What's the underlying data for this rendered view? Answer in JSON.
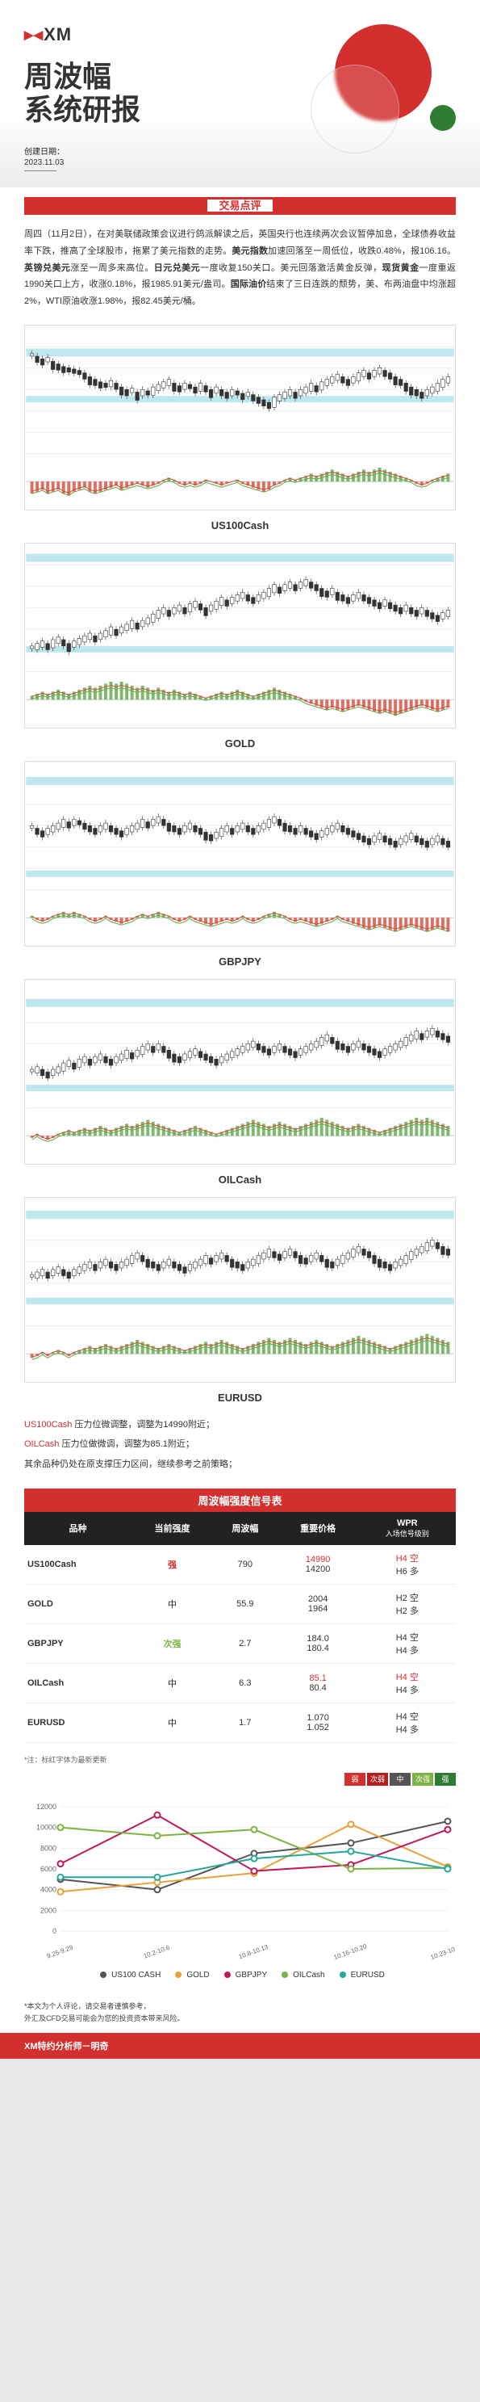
{
  "brand": "XM",
  "title_line1": "周波幅",
  "title_line2": "系统研报",
  "date_label": "创建日期：",
  "date_value": "2023.11.03",
  "section_commentary": "交易点评",
  "commentary_html": "周四（11月2日），在对美联储政策会议进行鸽派解读之后，英国央行也连续两次会议暂停加息，全球债券收益率下跌，推高了全球股市，拖累了美元指数的走势。<b>美元指数</b>加速回落至一周低位，收跌0.48%，报106.16。<b>英镑兑美元</b>涨至一周多来高位。<b>日元兑美元</b>一度收复150关口。美元回落激活黄金反弹，<b>现货黄金</b>一度重返1990关口上方，收涨0.18%，报1985.91美元/盎司。<b>国际油价</b>结束了三日连跌的颓势，美、布两油盘中均涨超2%，WTI原油收涨1.98%，报82.45美元/桶。",
  "charts": [
    {
      "label": "US100Cash",
      "support1": 0.55,
      "support2": 0.65,
      "resist": 0.18,
      "trend": "down-up",
      "bars": [
        78,
        76,
        74,
        75,
        72,
        70,
        68,
        67,
        66,
        65,
        63,
        60,
        58,
        56,
        55,
        57,
        55,
        52,
        50,
        51,
        48,
        50,
        49,
        52,
        54,
        56,
        58,
        55,
        53,
        55,
        54,
        52,
        55,
        53,
        50,
        52,
        50,
        48,
        50,
        49,
        47,
        48,
        46,
        44,
        42,
        40,
        44,
        46,
        48,
        50,
        48,
        50,
        52,
        55,
        53,
        56,
        58,
        60,
        62,
        60,
        58,
        60,
        63,
        65,
        63,
        65,
        67,
        65,
        63,
        60,
        58,
        55,
        52,
        50,
        48,
        50,
        52,
        55,
        58,
        60
      ],
      "osc": [
        -6,
        -5,
        -4,
        -6,
        -5,
        -4,
        -6,
        -7,
        -5,
        -4,
        -3,
        -5,
        -6,
        -5,
        -4,
        -3,
        -2,
        -4,
        -3,
        -2,
        -1,
        -2,
        -3,
        -2,
        -1,
        1,
        2,
        1,
        -1,
        -2,
        -1,
        -2,
        -1,
        1,
        0,
        -1,
        -2,
        -1,
        0,
        1,
        -1,
        -2,
        -3,
        -4,
        -5,
        -4,
        -2,
        -1,
        1,
        2,
        1,
        2,
        3,
        4,
        3,
        4,
        5,
        6,
        5,
        4,
        3,
        4,
        5,
        6,
        5,
        6,
        7,
        6,
        5,
        4,
        3,
        2,
        1,
        -1,
        -2,
        -1,
        1,
        2,
        3,
        4
      ]
    },
    {
      "label": "GOLD",
      "support1": 0.8,
      "support2": 0.88,
      "resist": 0.08,
      "trend": "up-down",
      "bars": [
        20,
        22,
        24,
        22,
        25,
        27,
        25,
        22,
        24,
        26,
        28,
        30,
        28,
        30,
        32,
        35,
        33,
        35,
        37,
        40,
        38,
        40,
        42,
        45,
        48,
        50,
        48,
        50,
        52,
        50,
        53,
        55,
        53,
        50,
        52,
        55,
        58,
        56,
        58,
        60,
        62,
        60,
        58,
        60,
        62,
        65,
        68,
        66,
        68,
        70,
        68,
        70,
        72,
        70,
        68,
        65,
        63,
        65,
        62,
        60,
        58,
        60,
        62,
        60,
        58,
        56,
        54,
        56,
        54,
        52,
        50,
        52,
        50,
        48,
        50,
        48,
        46,
        44,
        46,
        48
      ],
      "osc": [
        2,
        3,
        4,
        3,
        4,
        5,
        4,
        3,
        4,
        5,
        6,
        7,
        6,
        7,
        8,
        9,
        8,
        9,
        8,
        7,
        6,
        7,
        6,
        5,
        6,
        5,
        4,
        5,
        4,
        3,
        4,
        3,
        2,
        1,
        2,
        3,
        4,
        3,
        4,
        5,
        4,
        3,
        2,
        3,
        4,
        5,
        6,
        5,
        4,
        3,
        2,
        1,
        -1,
        -2,
        -3,
        -4,
        -5,
        -4,
        -5,
        -6,
        -5,
        -4,
        -3,
        -4,
        -5,
        -6,
        -7,
        -6,
        -7,
        -8,
        -7,
        -6,
        -5,
        -4,
        -3,
        -4,
        -5,
        -6,
        -5,
        -4
      ]
    },
    {
      "label": "GBPJPY",
      "support1": 0.85,
      "support2": 0.92,
      "resist": 0.12,
      "trend": "up-down",
      "bars": [
        50,
        48,
        46,
        48,
        50,
        52,
        55,
        53,
        55,
        54,
        52,
        50,
        48,
        50,
        52,
        50,
        48,
        46,
        48,
        50,
        52,
        55,
        53,
        55,
        57,
        55,
        52,
        50,
        48,
        50,
        52,
        50,
        48,
        45,
        43,
        45,
        48,
        50,
        48,
        50,
        52,
        50,
        48,
        50,
        52,
        55,
        57,
        55,
        52,
        50,
        48,
        50,
        48,
        46,
        44,
        46,
        48,
        50,
        52,
        50,
        48,
        46,
        44,
        42,
        40,
        42,
        44,
        42,
        40,
        38,
        40,
        42,
        44,
        42,
        40,
        38,
        40,
        42,
        40,
        38
      ],
      "osc": [
        1,
        -1,
        -2,
        -1,
        1,
        2,
        3,
        2,
        3,
        2,
        1,
        -1,
        -2,
        -1,
        1,
        -1,
        -2,
        -3,
        -2,
        -1,
        1,
        2,
        1,
        2,
        3,
        2,
        1,
        -1,
        -2,
        -1,
        1,
        -1,
        -2,
        -3,
        -4,
        -3,
        -2,
        -1,
        -2,
        -1,
        1,
        -1,
        -2,
        -1,
        1,
        2,
        3,
        2,
        1,
        -1,
        -2,
        -1,
        -2,
        -3,
        -4,
        -3,
        -2,
        -1,
        1,
        -1,
        -2,
        -3,
        -4,
        -5,
        -6,
        -5,
        -4,
        -5,
        -6,
        -7,
        -6,
        -5,
        -4,
        -5,
        -6,
        -7,
        -6,
        -5,
        -6,
        -7
      ]
    },
    {
      "label": "OILCash",
      "support1": 0.82,
      "support2": 0.9,
      "resist": 0.15,
      "trend": "down-up",
      "bars": [
        30,
        32,
        30,
        28,
        30,
        32,
        35,
        37,
        35,
        38,
        40,
        38,
        40,
        42,
        40,
        38,
        40,
        42,
        45,
        43,
        45,
        48,
        50,
        48,
        50,
        48,
        45,
        42,
        40,
        42,
        44,
        46,
        44,
        42,
        40,
        38,
        40,
        42,
        44,
        46,
        48,
        50,
        52,
        50,
        48,
        46,
        48,
        50,
        48,
        46,
        44,
        46,
        48,
        50,
        52,
        55,
        57,
        55,
        52,
        50,
        48,
        50,
        52,
        50,
        48,
        46,
        44,
        46,
        48,
        50,
        52,
        55,
        57,
        60,
        58,
        60,
        62,
        60,
        58,
        56
      ],
      "osc": [
        -1,
        1,
        -1,
        -2,
        -1,
        1,
        2,
        3,
        2,
        3,
        4,
        3,
        4,
        5,
        4,
        3,
        4,
        5,
        6,
        5,
        6,
        7,
        8,
        7,
        6,
        5,
        4,
        3,
        2,
        3,
        4,
        5,
        4,
        3,
        2,
        1,
        2,
        3,
        4,
        5,
        6,
        7,
        8,
        7,
        6,
        5,
        6,
        7,
        6,
        5,
        4,
        5,
        6,
        7,
        8,
        9,
        8,
        7,
        6,
        5,
        4,
        5,
        6,
        5,
        4,
        3,
        2,
        3,
        4,
        5,
        6,
        7,
        8,
        9,
        8,
        9,
        8,
        7,
        6,
        5
      ]
    },
    {
      "label": "EURUSD",
      "support1": 0.78,
      "support2": 0.88,
      "resist": 0.1,
      "trend": "up-down",
      "bars": [
        40,
        42,
        44,
        42,
        44,
        46,
        44,
        42,
        44,
        46,
        48,
        50,
        48,
        50,
        52,
        50,
        48,
        50,
        52,
        55,
        57,
        55,
        52,
        50,
        48,
        50,
        52,
        50,
        48,
        46,
        48,
        50,
        52,
        55,
        53,
        55,
        57,
        55,
        52,
        50,
        48,
        50,
        52,
        55,
        57,
        60,
        58,
        56,
        58,
        60,
        58,
        55,
        53,
        55,
        57,
        55,
        52,
        50,
        52,
        55,
        57,
        60,
        62,
        60,
        58,
        55,
        52,
        50,
        48,
        50,
        52,
        55,
        58,
        60,
        62,
        65,
        67,
        65,
        62,
        60
      ],
      "osc": [
        -2,
        -1,
        1,
        -1,
        1,
        2,
        1,
        -1,
        1,
        2,
        3,
        4,
        3,
        4,
        5,
        4,
        3,
        4,
        5,
        6,
        7,
        6,
        5,
        4,
        3,
        4,
        5,
        4,
        3,
        2,
        3,
        4,
        5,
        6,
        5,
        6,
        7,
        6,
        5,
        4,
        3,
        4,
        5,
        6,
        7,
        8,
        7,
        6,
        7,
        8,
        7,
        6,
        5,
        6,
        7,
        6,
        5,
        4,
        5,
        6,
        7,
        8,
        9,
        8,
        7,
        6,
        5,
        4,
        3,
        4,
        5,
        6,
        7,
        8,
        9,
        10,
        9,
        8,
        7,
        6
      ]
    }
  ],
  "notes": [
    {
      "sym": "US100Cash",
      "txt": " 压力位微调整，调整为14990附近；",
      "hl": true
    },
    {
      "sym": "OILCash",
      "txt": " 压力位做微调，调整为85.1附近；",
      "hl": true
    },
    {
      "sym": "",
      "txt": "其余品种仍处在原支撑压力区间，继续参考之前策略；",
      "hl": false
    }
  ],
  "table_title": "周波幅强度信号表",
  "th": {
    "c1": "品种",
    "c2": "当前强度",
    "c3": "周波幅",
    "c4": "重要价格",
    "c5": "WPR",
    "c5s": "入场信号级别"
  },
  "rows": [
    {
      "sym": "US100Cash",
      "str": "强",
      "str_cls": "str-strong",
      "wpr": "790",
      "p1": "14990",
      "p1_red": true,
      "p2": "14200",
      "s1": "H4 空",
      "s1_red": true,
      "s2": "H6 多"
    },
    {
      "sym": "GOLD",
      "str": "中",
      "str_cls": "str-mid",
      "wpr": "55.9",
      "p1": "2004",
      "p2": "1964",
      "s1": "H2 空",
      "s2": "H2 多"
    },
    {
      "sym": "GBPJPY",
      "str": "次强",
      "str_cls": "str-sub",
      "wpr": "2.7",
      "p1": "184.0",
      "p2": "180.4",
      "s1": "H4 空",
      "s2": "H4 多"
    },
    {
      "sym": "OILCash",
      "str": "中",
      "str_cls": "str-mid",
      "wpr": "6.3",
      "p1": "85.1",
      "p1_red": true,
      "p2": "80.4",
      "s1": "H4 空",
      "s1_red": true,
      "s2": "H4 多"
    },
    {
      "sym": "EURUSD",
      "str": "中",
      "str_cls": "str-mid",
      "wpr": "1.7",
      "p1": "1.070",
      "p2": "1.052",
      "s1": "H4 空",
      "s2": "H4 多"
    }
  ],
  "star_note": "*注：标红字体为最新更新",
  "badges": [
    "弱",
    "次弱",
    "中",
    "次强",
    "强"
  ],
  "linechart": {
    "xlabels": [
      "9.25-9.29",
      "10.2-10.6",
      "10.8-10.13",
      "10.16-10.20",
      "10.23-10.27"
    ],
    "yvals": [
      0,
      2000,
      4000,
      6000,
      8000,
      10000,
      12000
    ],
    "ymax": 12000,
    "series": [
      {
        "name": "US100 CASH",
        "color": "#555",
        "vals": [
          5000,
          4000,
          7500,
          8500,
          10600
        ]
      },
      {
        "name": "GOLD",
        "color": "#e8a13a",
        "vals": [
          3800,
          4700,
          5600,
          10300,
          6200
        ]
      },
      {
        "name": "GBPJPY",
        "color": "#c2185b",
        "vals": [
          6500,
          11200,
          5800,
          6400,
          9800
        ]
      },
      {
        "name": "OILCash",
        "color": "#7cb342",
        "vals": [
          10000,
          9200,
          9800,
          6000,
          6100
        ]
      },
      {
        "name": "EURUSD",
        "color": "#26a69a",
        "vals": [
          5200,
          5200,
          7000,
          7700,
          6000
        ]
      }
    ]
  },
  "disclaimer1": "*本文为个人评论，请交易者谨慎参考，",
  "disclaimer2": "外汇及CFD交易可能会为您的投资资本带来风险。",
  "footer": "XM特约分析师－明奇"
}
